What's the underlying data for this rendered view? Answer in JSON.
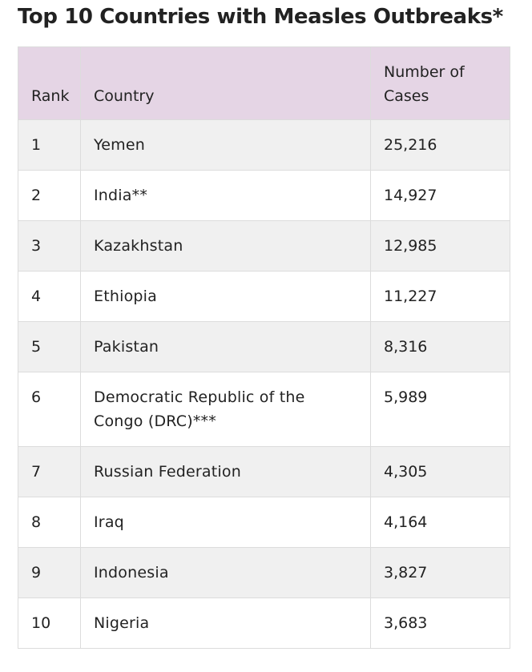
{
  "title": "Top 10 Countries with Measles Outbreaks*",
  "table": {
    "headers": {
      "rank": "Rank",
      "country": "Country",
      "cases": "Number of Cases"
    },
    "rows": [
      {
        "rank": "1",
        "country": "Yemen",
        "cases": "25,216"
      },
      {
        "rank": "2",
        "country": "India**",
        "cases": "14,927"
      },
      {
        "rank": "3",
        "country": "Kazakhstan",
        "cases": "12,985"
      },
      {
        "rank": "4",
        "country": "Ethiopia",
        "cases": "11,227"
      },
      {
        "rank": "5",
        "country": "Pakistan",
        "cases": "8,316"
      },
      {
        "rank": "6",
        "country": "Democratic Republic of the Congo (DRC)***",
        "cases": "5,989"
      },
      {
        "rank": "7",
        "country": "Russian Federation",
        "cases": "4,305"
      },
      {
        "rank": "8",
        "country": "Iraq",
        "cases": "4,164"
      },
      {
        "rank": "9",
        "country": "Indonesia",
        "cases": "3,827"
      },
      {
        "rank": "10",
        "country": "Nigeria",
        "cases": "3,683"
      }
    ]
  },
  "colors": {
    "header_bg": "#e5d5e5",
    "row_alt_bg": "#f0f0f0",
    "border": "#dcdcdc",
    "text": "#222222"
  }
}
